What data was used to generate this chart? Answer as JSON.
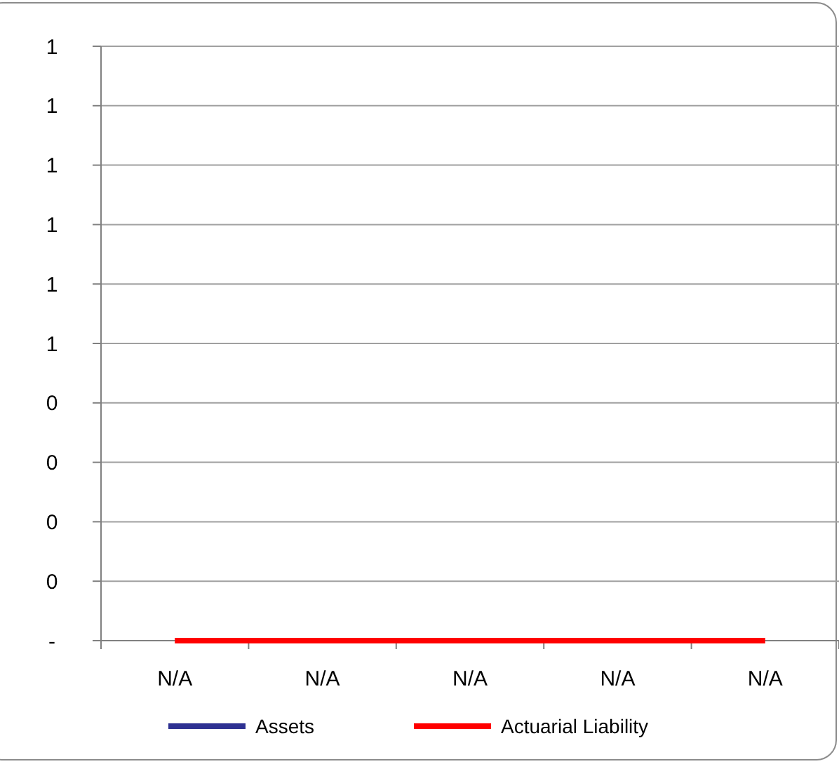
{
  "chart_data": {
    "type": "line",
    "categories": [
      "N/A",
      "N/A",
      "N/A",
      "N/A",
      "N/A"
    ],
    "series": [
      {
        "name": "Assets",
        "color": "#2e3192",
        "values": [
          null,
          null,
          null,
          null,
          null
        ]
      },
      {
        "name": "Actuarial Liability",
        "color": "#ff0000",
        "values": [
          0,
          0,
          0,
          0,
          0
        ]
      }
    ],
    "ylim": [
      0,
      1
    ],
    "yticks": [
      {
        "value": 0,
        "label": "-"
      },
      {
        "value": 0.1,
        "label": "0"
      },
      {
        "value": 0.2,
        "label": "0"
      },
      {
        "value": 0.3,
        "label": "0"
      },
      {
        "value": 0.4,
        "label": "0"
      },
      {
        "value": 0.5,
        "label": "1"
      },
      {
        "value": 0.6,
        "label": "1"
      },
      {
        "value": 0.7,
        "label": "1"
      },
      {
        "value": 0.8,
        "label": "1"
      },
      {
        "value": 0.9,
        "label": "1"
      },
      {
        "value": 1,
        "label": "1"
      }
    ],
    "grid": "y",
    "legend": "bottom",
    "marker": "none",
    "line_style": "solid"
  }
}
